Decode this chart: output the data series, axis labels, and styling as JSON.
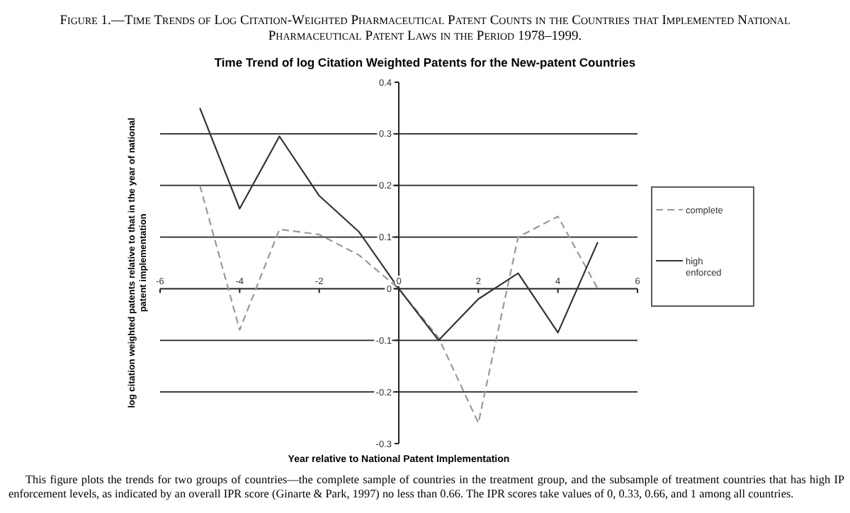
{
  "chart_data": {
    "type": "line",
    "title": "Figure 1.—Time Trends of Log Citation-Weighted Pharmaceutical Patent Counts in the Countries that Implemented National Pharmaceutical Patent Laws in the Period 1978–1999.",
    "subtitle": "Time Trend of log Citation Weighted Patents for the New-patent Countries",
    "xlabel": "Year relative to National Patent Implementation",
    "ylabel": "log citation weighted patents relative to that in the year of national patent implementation",
    "x": [
      -5,
      -4,
      -3,
      -2,
      -1,
      0,
      1,
      2,
      3,
      4,
      5
    ],
    "series": [
      {
        "name": "complete",
        "color": "#999999",
        "line_style": "dashed",
        "values": [
          0.2,
          -0.08,
          0.115,
          0.105,
          0.065,
          0,
          -0.095,
          -0.26,
          0.1,
          0.14,
          0
        ]
      },
      {
        "name": "high enforced",
        "color": "#333333",
        "line_style": "solid",
        "values": [
          0.35,
          0.155,
          0.295,
          0.18,
          0.11,
          0,
          -0.1,
          -0.02,
          0.03,
          -0.085,
          0.09
        ]
      }
    ],
    "xlim": [
      -6,
      6
    ],
    "xticks": [
      -6,
      -4,
      -2,
      0,
      2,
      4,
      6
    ],
    "ylim": [
      -0.3,
      0.4
    ],
    "yticks": [
      -0.3,
      -0.2,
      -0.1,
      0,
      0.1,
      0.2,
      0.3,
      0.4
    ],
    "grid": "y",
    "legend": "right",
    "marker": "none",
    "annotations": [
      "This figure plots the trends for two groups of countries—the complete sample of countries in the treatment group, and the subsample of treatment countries that has high IP enforcement levels, as indicated by an overall IPR score (Ginarte & Park, 1997) no less than 0.66. The IPR scores take values of 0, 0.33, 0.66, and 1 among all countries."
    ]
  }
}
